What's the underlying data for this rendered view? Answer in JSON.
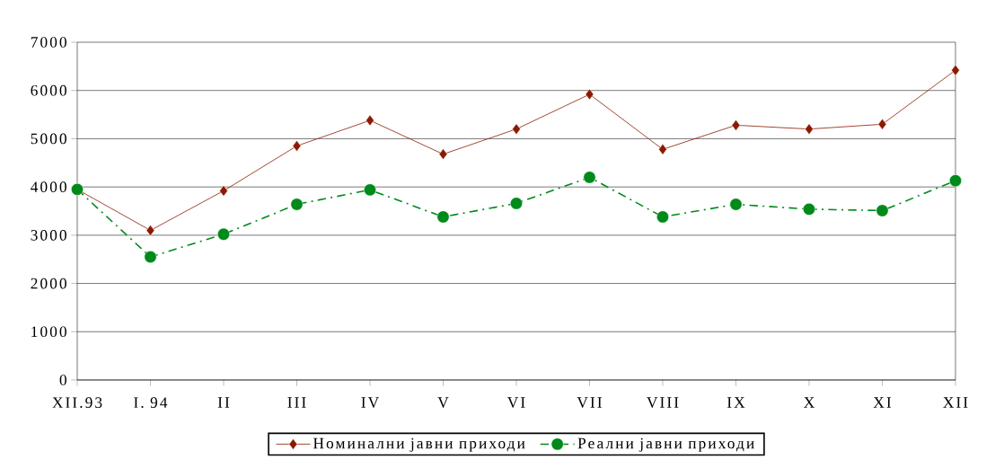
{
  "chart_data": {
    "type": "line",
    "categories": [
      "XII.93",
      "I. 94",
      "II",
      "III",
      "IV",
      "V",
      "VI",
      "VII",
      "VIII",
      "IX",
      "X",
      "XI",
      "XII"
    ],
    "series": [
      {
        "name": "Номинални јавни приходи",
        "color": "#8b1a00",
        "marker": "diamond",
        "line_style": "solid",
        "values": [
          3950,
          3100,
          3920,
          4850,
          5380,
          4680,
          5200,
          5920,
          4780,
          5280,
          5200,
          5300,
          6420
        ]
      },
      {
        "name": "Реални јавни приходи",
        "color": "#008a1a",
        "marker": "circle",
        "line_style": "dashdot",
        "values": [
          3950,
          2550,
          3020,
          3640,
          3940,
          3380,
          3660,
          4200,
          3380,
          3640,
          3540,
          3510,
          4130
        ]
      }
    ],
    "ylim": [
      0,
      7000
    ],
    "yticks": [
      0,
      1000,
      2000,
      3000,
      4000,
      5000,
      6000,
      7000
    ],
    "grid": "y",
    "legend": "bottom"
  }
}
